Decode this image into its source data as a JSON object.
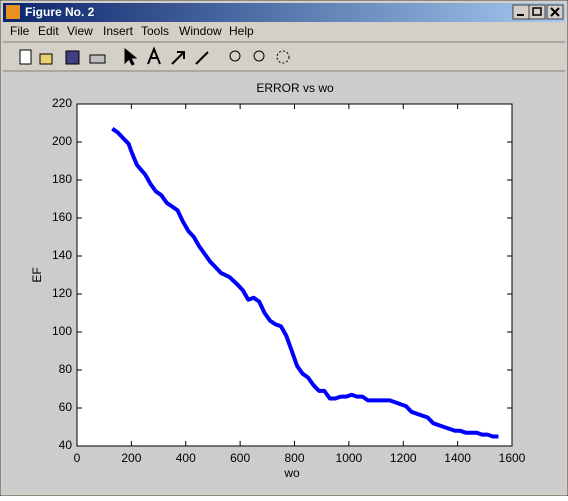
{
  "window": {
    "title": "Figure No. 2",
    "menu": [
      "File",
      "Edit",
      "View",
      "Insert",
      "Tools",
      "Window",
      "Help"
    ]
  },
  "chart_data": {
    "type": "line",
    "title": "ERROR vs  wo",
    "x_label": "wo",
    "y_label": "EF",
    "color": "#0000ff",
    "x": [
      130,
      150,
      170,
      190,
      200,
      220,
      250,
      270,
      290,
      310,
      330,
      350,
      370,
      390,
      410,
      430,
      450,
      470,
      490,
      510,
      530,
      560,
      590,
      610,
      630,
      650,
      670,
      690,
      710,
      730,
      750,
      770,
      790,
      810,
      830,
      850,
      870,
      890,
      910,
      930,
      950,
      970,
      990,
      1010,
      1030,
      1050,
      1070,
      1090,
      1110,
      1130,
      1150,
      1170,
      1190,
      1210,
      1230,
      1250,
      1270,
      1290,
      1310,
      1330,
      1350,
      1370,
      1390,
      1410,
      1430,
      1450,
      1470,
      1490,
      1510,
      1530,
      1550
    ],
    "values": [
      207,
      205,
      202,
      199,
      195,
      188,
      183,
      178,
      174,
      172,
      168,
      166,
      164,
      158,
      153,
      150,
      145,
      141,
      137,
      134,
      131,
      129,
      125,
      122,
      117,
      118,
      116,
      110,
      106,
      104,
      103,
      98,
      90,
      82,
      78,
      76,
      72,
      69,
      69,
      65,
      65,
      66,
      66,
      67,
      66,
      66,
      64,
      64,
      64,
      64,
      64,
      63,
      62,
      61,
      58,
      57,
      56,
      55,
      52,
      51,
      50,
      49,
      48,
      48,
      47,
      47,
      47,
      46,
      46,
      45,
      45
    ],
    "xlim": [
      0,
      1600
    ],
    "ylim": [
      40,
      220
    ],
    "xticks": [
      0,
      200,
      400,
      600,
      800,
      1000,
      1200,
      1400,
      1600
    ],
    "yticks": [
      40,
      60,
      80,
      100,
      120,
      140,
      160,
      180,
      200,
      220
    ]
  }
}
